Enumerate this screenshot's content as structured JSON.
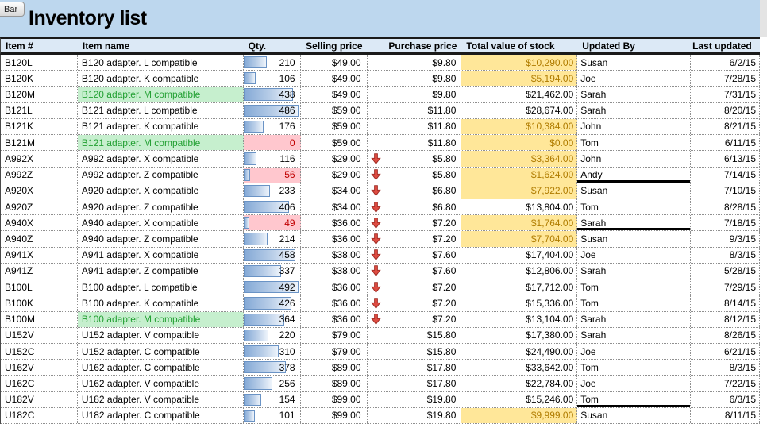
{
  "window": {
    "toolbar_button": "Bar"
  },
  "header": {
    "title": "Inventory list"
  },
  "colors": {
    "title_bg": "#BDD7EE",
    "header_bg": "#DCE9F6",
    "dark_border": "#1A1A1A",
    "good_bg": "#C6EFCE",
    "good_text": "#23A033",
    "bad_bg": "#FFC7CE",
    "bad_text": "#C00000",
    "neutral_bg": "#FFE799",
    "neutral_text": "#B07C00",
    "bar_border": "#6A93C5",
    "bar_start": "#84A9D6",
    "arrow_fill": "#DE4B41",
    "arrow_stroke": "#9E2B23"
  },
  "table": {
    "columns": [
      "Item #",
      "Item name",
      "Qty.",
      "Selling price",
      "Purchase price",
      "Total value of stock",
      "Updated By",
      "Last updated"
    ],
    "qty_bar_max": 500,
    "rows": [
      {
        "item": "B120L",
        "name": "B120 adapter. L compatible",
        "name_highlight": false,
        "qty": 210,
        "qty_low": false,
        "selling": "$49.00",
        "price_drop": false,
        "purchase": "$9.80",
        "total": "$10,290.00",
        "total_highlight": true,
        "updated_by": "Susan",
        "last_updated": "6/2/15",
        "divider_below": false
      },
      {
        "item": "B120K",
        "name": "B120 adapter. K compatible",
        "name_highlight": false,
        "qty": 106,
        "qty_low": false,
        "selling": "$49.00",
        "price_drop": false,
        "purchase": "$9.80",
        "total": "$5,194.00",
        "total_highlight": true,
        "updated_by": "Joe",
        "last_updated": "7/28/15",
        "divider_below": false
      },
      {
        "item": "B120M",
        "name": "B120 adapter. M compatible",
        "name_highlight": true,
        "qty": 438,
        "qty_low": false,
        "selling": "$49.00",
        "price_drop": false,
        "purchase": "$9.80",
        "total": "$21,462.00",
        "total_highlight": false,
        "updated_by": "Sarah",
        "last_updated": "7/31/15",
        "divider_below": false
      },
      {
        "item": "B121L",
        "name": "B121 adapter. L compatible",
        "name_highlight": false,
        "qty": 486,
        "qty_low": false,
        "selling": "$59.00",
        "price_drop": false,
        "purchase": "$11.80",
        "total": "$28,674.00",
        "total_highlight": false,
        "updated_by": "Sarah",
        "last_updated": "8/20/15",
        "divider_below": false
      },
      {
        "item": "B121K",
        "name": "B121 adapter. K compatible",
        "name_highlight": false,
        "qty": 176,
        "qty_low": false,
        "selling": "$59.00",
        "price_drop": false,
        "purchase": "$11.80",
        "total": "$10,384.00",
        "total_highlight": true,
        "updated_by": "John",
        "last_updated": "8/21/15",
        "divider_below": false
      },
      {
        "item": "B121M",
        "name": "B121 adapter. M compatible",
        "name_highlight": true,
        "qty": 0,
        "qty_low": true,
        "selling": "$59.00",
        "price_drop": false,
        "purchase": "$11.80",
        "total": "$0.00",
        "total_highlight": true,
        "updated_by": "Tom",
        "last_updated": "6/11/15",
        "divider_below": false
      },
      {
        "item": "A992X",
        "name": "A992 adapter. X compatible",
        "name_highlight": false,
        "qty": 116,
        "qty_low": false,
        "selling": "$29.00",
        "price_drop": true,
        "purchase": "$5.80",
        "total": "$3,364.00",
        "total_highlight": true,
        "updated_by": "John",
        "last_updated": "6/13/15",
        "divider_below": false
      },
      {
        "item": "A992Z",
        "name": "A992 adapter. Z compatible",
        "name_highlight": false,
        "qty": 56,
        "qty_low": true,
        "selling": "$29.00",
        "price_drop": true,
        "purchase": "$5.80",
        "total": "$1,624.00",
        "total_highlight": true,
        "updated_by": "Andy",
        "last_updated": "7/14/15",
        "divider_below": true
      },
      {
        "item": "A920X",
        "name": "A920 adapter. X compatible",
        "name_highlight": false,
        "qty": 233,
        "qty_low": false,
        "selling": "$34.00",
        "price_drop": true,
        "purchase": "$6.80",
        "total": "$7,922.00",
        "total_highlight": true,
        "updated_by": "Susan",
        "last_updated": "7/10/15",
        "divider_below": false
      },
      {
        "item": "A920Z",
        "name": "A920 adapter. Z compatible",
        "name_highlight": false,
        "qty": 406,
        "qty_low": false,
        "selling": "$34.00",
        "price_drop": true,
        "purchase": "$6.80",
        "total": "$13,804.00",
        "total_highlight": false,
        "updated_by": "Tom",
        "last_updated": "8/28/15",
        "divider_below": false
      },
      {
        "item": "A940X",
        "name": "A940 adapter. X compatible",
        "name_highlight": false,
        "qty": 49,
        "qty_low": true,
        "selling": "$36.00",
        "price_drop": true,
        "purchase": "$7.20",
        "total": "$1,764.00",
        "total_highlight": true,
        "updated_by": "Sarah",
        "last_updated": "7/18/15",
        "divider_below": true
      },
      {
        "item": "A940Z",
        "name": "A940 adapter. Z compatible",
        "name_highlight": false,
        "qty": 214,
        "qty_low": false,
        "selling": "$36.00",
        "price_drop": true,
        "purchase": "$7.20",
        "total": "$7,704.00",
        "total_highlight": true,
        "updated_by": "Susan",
        "last_updated": "9/3/15",
        "divider_below": false
      },
      {
        "item": "A941X",
        "name": "A941 adapter. X compatible",
        "name_highlight": false,
        "qty": 458,
        "qty_low": false,
        "selling": "$38.00",
        "price_drop": true,
        "purchase": "$7.60",
        "total": "$17,404.00",
        "total_highlight": false,
        "updated_by": "Joe",
        "last_updated": "8/3/15",
        "divider_below": false
      },
      {
        "item": "A941Z",
        "name": "A941 adapter. Z compatible",
        "name_highlight": false,
        "qty": 337,
        "qty_low": false,
        "selling": "$38.00",
        "price_drop": true,
        "purchase": "$7.60",
        "total": "$12,806.00",
        "total_highlight": false,
        "updated_by": "Sarah",
        "last_updated": "5/28/15",
        "divider_below": false
      },
      {
        "item": "B100L",
        "name": "B100 adapter. L compatible",
        "name_highlight": false,
        "qty": 492,
        "qty_low": false,
        "selling": "$36.00",
        "price_drop": true,
        "purchase": "$7.20",
        "total": "$17,712.00",
        "total_highlight": false,
        "updated_by": "Tom",
        "last_updated": "7/29/15",
        "divider_below": false
      },
      {
        "item": "B100K",
        "name": "B100 adapter. K compatible",
        "name_highlight": false,
        "qty": 426,
        "qty_low": false,
        "selling": "$36.00",
        "price_drop": true,
        "purchase": "$7.20",
        "total": "$15,336.00",
        "total_highlight": false,
        "updated_by": "Tom",
        "last_updated": "8/14/15",
        "divider_below": false
      },
      {
        "item": "B100M",
        "name": "B100 adapter. M compatible",
        "name_highlight": true,
        "qty": 364,
        "qty_low": false,
        "selling": "$36.00",
        "price_drop": true,
        "purchase": "$7.20",
        "total": "$13,104.00",
        "total_highlight": false,
        "updated_by": "Sarah",
        "last_updated": "8/12/15",
        "divider_below": false
      },
      {
        "item": "U152V",
        "name": "U152 adapter. V compatible",
        "name_highlight": false,
        "qty": 220,
        "qty_low": false,
        "selling": "$79.00",
        "price_drop": false,
        "purchase": "$15.80",
        "total": "$17,380.00",
        "total_highlight": false,
        "updated_by": "Sarah",
        "last_updated": "8/26/15",
        "divider_below": false
      },
      {
        "item": "U152C",
        "name": "U152 adapter. C compatible",
        "name_highlight": false,
        "qty": 310,
        "qty_low": false,
        "selling": "$79.00",
        "price_drop": false,
        "purchase": "$15.80",
        "total": "$24,490.00",
        "total_highlight": false,
        "updated_by": "Joe",
        "last_updated": "6/21/15",
        "divider_below": false
      },
      {
        "item": "U162V",
        "name": "U162 adapter. C compatible",
        "name_highlight": false,
        "qty": 378,
        "qty_low": false,
        "selling": "$89.00",
        "price_drop": false,
        "purchase": "$17.80",
        "total": "$33,642.00",
        "total_highlight": false,
        "updated_by": "Tom",
        "last_updated": "8/3/15",
        "divider_below": false
      },
      {
        "item": "U162C",
        "name": "U162 adapter. V compatible",
        "name_highlight": false,
        "qty": 256,
        "qty_low": false,
        "selling": "$89.00",
        "price_drop": false,
        "purchase": "$17.80",
        "total": "$22,784.00",
        "total_highlight": false,
        "updated_by": "Joe",
        "last_updated": "7/22/15",
        "divider_below": false
      },
      {
        "item": "U182V",
        "name": "U182 adapter. V compatible",
        "name_highlight": false,
        "qty": 154,
        "qty_low": false,
        "selling": "$99.00",
        "price_drop": false,
        "purchase": "$19.80",
        "total": "$15,246.00",
        "total_highlight": false,
        "updated_by": "Tom",
        "last_updated": "6/3/15",
        "divider_below": true
      },
      {
        "item": "U182C",
        "name": "U182 adapter. C compatible",
        "name_highlight": false,
        "qty": 101,
        "qty_low": false,
        "selling": "$99.00",
        "price_drop": false,
        "purchase": "$19.80",
        "total": "$9,999.00",
        "total_highlight": true,
        "updated_by": "Susan",
        "last_updated": "8/11/15",
        "divider_below": false
      }
    ]
  }
}
